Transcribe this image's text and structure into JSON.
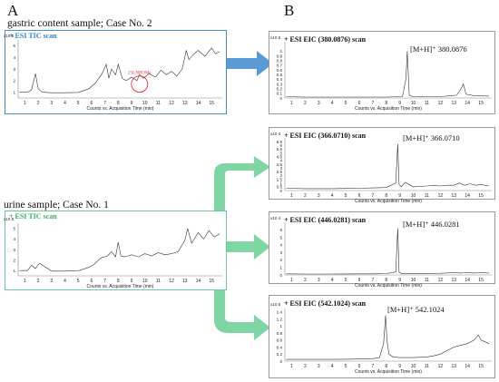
{
  "panels": {
    "left_letter": "A",
    "right_letter": "B"
  },
  "captions": {
    "gastric": "gastric content sample; Case No. 2",
    "urine": "urine sample; Case No. 1"
  },
  "colors": {
    "blue_arrow": "#5b9bd5",
    "green_arrow": "#7fd6a4",
    "trace": "#333333",
    "annotation": "#e0333a"
  },
  "chart_data": [
    {
      "id": "gastric-tic",
      "type": "line",
      "title": "+ ESI TIC scan",
      "title_color": "#2f7fc1",
      "scale_label": "x10 5",
      "xlabel": "Counts vs. Acquisition Time (min)",
      "xlim": [
        0.5,
        15.8
      ],
      "ylim": [
        0.5,
        5.5
      ],
      "x_ticks": [
        1,
        2,
        3,
        4,
        5,
        6,
        7,
        8,
        9,
        10,
        11,
        12,
        13,
        14,
        15
      ],
      "y_ticks": [
        1,
        2,
        3,
        4,
        5
      ],
      "annotation": {
        "text": "25I-NBOMe",
        "x": 9.6,
        "y": 1.7
      },
      "x": [
        0.6,
        1.2,
        1.5,
        1.8,
        2.0,
        2.3,
        3.0,
        4.0,
        5.0,
        5.8,
        6.3,
        6.8,
        7.1,
        7.3,
        7.5,
        7.8,
        8.0,
        8.3,
        8.6,
        9.0,
        9.4,
        9.6,
        9.9,
        10.3,
        10.8,
        11.2,
        11.6,
        12.0,
        12.4,
        12.8,
        13.1,
        13.3,
        13.6,
        14.0,
        14.5,
        15.0,
        15.3,
        15.6
      ],
      "y": [
        1.0,
        1.0,
        1.2,
        2.6,
        1.3,
        1.0,
        0.95,
        0.95,
        0.98,
        1.3,
        1.8,
        2.6,
        3.4,
        2.2,
        3.0,
        2.5,
        3.4,
        2.2,
        2.0,
        2.3,
        2.0,
        2.5,
        2.2,
        2.6,
        2.3,
        2.9,
        2.5,
        2.8,
        2.4,
        3.0,
        4.6,
        3.8,
        4.2,
        4.6,
        4.1,
        4.8,
        4.3,
        4.5
      ]
    },
    {
      "id": "urine-tic",
      "type": "line",
      "title": "+ ESI TIC scan",
      "title_color": "#3aa86b",
      "scale_label": "x10 5",
      "xlabel": "Counts vs. Acquisition Time (min)",
      "xlim": [
        0.5,
        15.8
      ],
      "ylim": [
        0.5,
        5.5
      ],
      "x_ticks": [
        1,
        2,
        3,
        4,
        5,
        6,
        7,
        8,
        9,
        10,
        11,
        12,
        13,
        14,
        15
      ],
      "y_ticks": [
        1,
        2,
        3,
        4,
        5
      ],
      "x": [
        0.6,
        1.2,
        1.5,
        1.8,
        2.1,
        3.0,
        4.0,
        5.0,
        5.8,
        6.2,
        6.7,
        7.2,
        7.5,
        7.8,
        8.0,
        8.2,
        8.5,
        9.0,
        9.5,
        10.0,
        10.5,
        11.0,
        11.5,
        12.0,
        12.5,
        13.0,
        13.2,
        13.5,
        14.0,
        14.4,
        14.8,
        15.2,
        15.6
      ],
      "y": [
        1.0,
        1.0,
        1.5,
        1.2,
        1.7,
        0.95,
        0.95,
        0.98,
        1.3,
        1.6,
        2.2,
        2.4,
        2.8,
        2.3,
        3.7,
        2.4,
        2.3,
        2.5,
        2.3,
        2.6,
        2.4,
        2.7,
        2.5,
        2.6,
        2.8,
        3.9,
        5.0,
        3.6,
        4.6,
        4.0,
        4.8,
        4.2,
        4.5
      ]
    },
    {
      "id": "eic-380",
      "type": "line",
      "title": "+ ESI EIC (380.0876) scan",
      "scale_label": "x10 5",
      "xlabel": "Counts vs. Acquisition Time (min)",
      "peak_label": "[M+H]⁺ 380.0876",
      "xlim": [
        0.5,
        15.8
      ],
      "ylim": [
        0,
        1.2
      ],
      "x_ticks": [
        1,
        2,
        3,
        4,
        5,
        6,
        7,
        8,
        9,
        10,
        11,
        12,
        13,
        14,
        15
      ],
      "y_ticks": [
        0,
        0.1,
        0.2,
        0.3,
        0.4,
        0.5,
        0.6,
        0.7,
        0.8,
        0.9,
        1
      ],
      "x": [
        0.6,
        2,
        4,
        6,
        8,
        9.2,
        9.45,
        9.55,
        9.7,
        10,
        11,
        12,
        12.8,
        13.2,
        13.5,
        13.7,
        13.9,
        14.5,
        15.6
      ],
      "y": [
        0.03,
        0.02,
        0.02,
        0.02,
        0.02,
        0.03,
        0.4,
        1.0,
        0.05,
        0.03,
        0.03,
        0.03,
        0.05,
        0.06,
        0.18,
        0.3,
        0.08,
        0.05,
        0.04
      ]
    },
    {
      "id": "eic-366",
      "type": "line",
      "title": "+ ESI EIC (366.0710) scan",
      "scale_label": "x10 4",
      "xlabel": "Counts vs. Acquisition Time (min)",
      "peak_label": "[M+H]⁺ 366.0710",
      "xlim": [
        0.5,
        15.8
      ],
      "ylim": [
        0,
        7
      ],
      "x_ticks": [
        1,
        2,
        3,
        4,
        5,
        6,
        7,
        8,
        9,
        10,
        11,
        12,
        13,
        14,
        15
      ],
      "y_ticks": [
        0,
        0.5,
        1,
        1.5,
        2,
        2.5,
        3,
        3.5,
        4,
        4.5,
        5,
        5.5,
        6,
        6.5
      ],
      "x": [
        0.6,
        2,
        4,
        6,
        7,
        8,
        8.7,
        8.85,
        8.95,
        9.1,
        9.4,
        10,
        11,
        11.5,
        12,
        12.5,
        13,
        13.4,
        13.8,
        14.2,
        14.6,
        15,
        15.6
      ],
      "y": [
        0.3,
        0.25,
        0.25,
        0.3,
        0.35,
        0.4,
        1.0,
        6.2,
        0.8,
        0.5,
        1.1,
        0.5,
        0.6,
        0.7,
        0.6,
        0.7,
        0.7,
        1.0,
        0.7,
        0.9,
        0.7,
        0.8,
        0.6
      ]
    },
    {
      "id": "eic-446",
      "type": "line",
      "title": "+ ESI EIC (446.0281) scan",
      "scale_label": "x10 4",
      "xlabel": "Counts vs. Acquisition Time (min)",
      "peak_label": "[M+H]⁺ 446.0281",
      "xlim": [
        0.5,
        15.8
      ],
      "ylim": [
        0,
        7
      ],
      "x_ticks": [
        1,
        2,
        3,
        4,
        5,
        6,
        7,
        8,
        9,
        10,
        11,
        12,
        13,
        14,
        15
      ],
      "y_ticks": [
        0,
        1,
        2,
        3,
        4,
        5,
        6
      ],
      "x": [
        0.6,
        2,
        4,
        6,
        7,
        8,
        8.7,
        8.85,
        8.95,
        9.1,
        10,
        11,
        12,
        13,
        13.5,
        14,
        14.5,
        15,
        15.6
      ],
      "y": [
        0.15,
        0.12,
        0.12,
        0.14,
        0.15,
        0.18,
        0.4,
        6.2,
        0.35,
        0.2,
        0.2,
        0.2,
        0.22,
        0.3,
        0.25,
        0.3,
        0.25,
        0.3,
        0.25
      ]
    },
    {
      "id": "eic-542",
      "type": "line",
      "title": "+ ESI EIC (542.1024) scan",
      "scale_label": "x10 5",
      "xlabel": "Counts vs. Acquisition Time (min)",
      "peak_label": "[M+H]⁺ 542.1024",
      "xlim": [
        0.5,
        15.8
      ],
      "ylim": [
        0,
        1.5
      ],
      "x_ticks": [
        1,
        2,
        3,
        4,
        5,
        6,
        7,
        8,
        9,
        10,
        11,
        12,
        13,
        14,
        15
      ],
      "y_ticks": [
        0,
        0.2,
        0.4,
        0.6,
        0.8,
        1,
        1.2,
        1.4
      ],
      "x": [
        0.6,
        2,
        4,
        6,
        7,
        7.5,
        7.8,
        7.95,
        8.05,
        8.2,
        8.5,
        9,
        10,
        11,
        11.5,
        12,
        12.5,
        13,
        13.5,
        14,
        14.5,
        14.8,
        15,
        15.3,
        15.6
      ],
      "y": [
        0.05,
        0.05,
        0.05,
        0.06,
        0.07,
        0.1,
        0.5,
        1.3,
        0.6,
        0.2,
        0.12,
        0.1,
        0.1,
        0.12,
        0.15,
        0.2,
        0.3,
        0.4,
        0.45,
        0.5,
        0.6,
        0.75,
        0.6,
        0.55,
        0.5
      ]
    }
  ]
}
